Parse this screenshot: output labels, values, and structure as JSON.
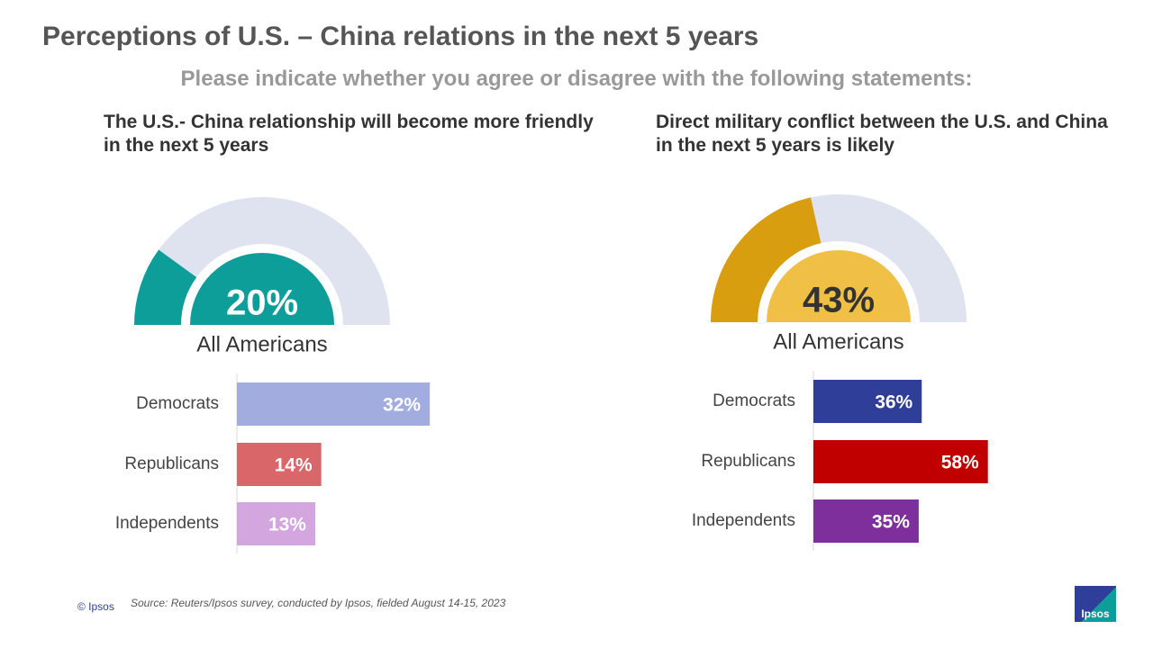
{
  "title": "Perceptions of U.S. – China relations in the next 5 years",
  "subtitle": "Please indicate whether you agree or disagree with the following statements:",
  "chart_data": [
    {
      "type": "gauge",
      "title": "The U.S.- China relationship will become more friendly in the next 5 years",
      "categories": [
        "All Americans"
      ],
      "values": [
        20
      ],
      "value_labels": [
        "20%"
      ],
      "ylim": [
        0,
        100
      ],
      "color": "#0d9e9a",
      "inner_color": "#0d9e9a",
      "track_color": "#dfe3f0",
      "label_color": "#ffffff"
    },
    {
      "type": "bar",
      "categories": [
        "Democrats",
        "Republicans",
        "Independents"
      ],
      "values": [
        32,
        14,
        13
      ],
      "value_labels": [
        "32%",
        "14%",
        "13%"
      ],
      "colors": [
        "#a3acdf",
        "#d9676a",
        "#d4a6e0"
      ]
    },
    {
      "type": "gauge",
      "title": "Direct military conflict between the U.S. and China in the next 5 years is likely",
      "categories": [
        "All Americans"
      ],
      "values": [
        43
      ],
      "value_labels": [
        "43%"
      ],
      "ylim": [
        0,
        100
      ],
      "color": "#d89e10",
      "inner_color": "#f0bf45",
      "track_color": "#dfe3f0",
      "label_color": "#333333"
    },
    {
      "type": "bar",
      "categories": [
        "Democrats",
        "Republicans",
        "Independents"
      ],
      "values": [
        36,
        58,
        35
      ],
      "value_labels": [
        "36%",
        "58%",
        "35%"
      ],
      "colors": [
        "#2f3f99",
        "#c00000",
        "#7f2f9b"
      ]
    }
  ],
  "source": "Source: Reuters/Ipsos survey, conducted by Ipsos, fielded August 14-15, 2023",
  "copyright": "© Ipsos",
  "logo": "Ipsos"
}
